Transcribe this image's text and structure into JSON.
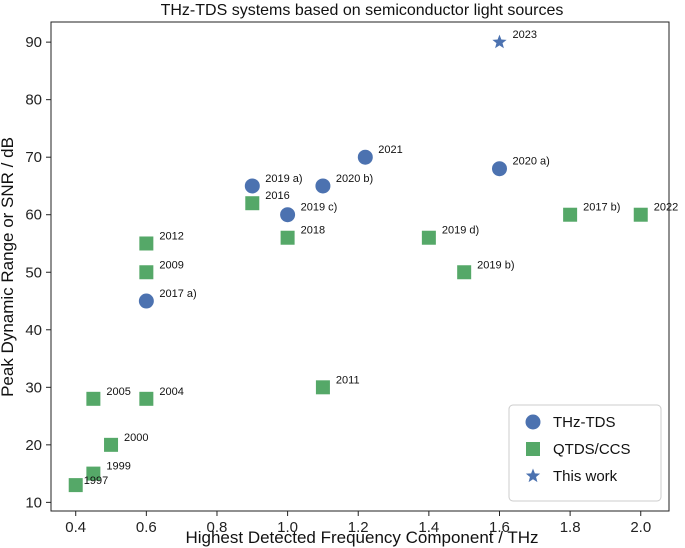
{
  "chart_data": {
    "type": "scatter",
    "title": "THz-TDS systems based on semiconductor light sources",
    "xlabel": "Highest Detected Frequency Component / THz",
    "ylabel": "Peak Dynamic Range or SNR / dB",
    "xlim": [
      0.33,
      2.08
    ],
    "ylim": [
      8.5,
      93.5
    ],
    "xticks": [
      0.4,
      0.6,
      0.8,
      1.0,
      1.2,
      1.4,
      1.6,
      1.8,
      2.0
    ],
    "xtick_labels": [
      "0.4",
      "0.6",
      "0.8",
      "1.0",
      "1.2",
      "1.4",
      "1.6",
      "1.8",
      "2.0"
    ],
    "yticks": [
      10,
      20,
      30,
      40,
      50,
      60,
      70,
      80,
      90
    ],
    "ytick_labels": [
      "10",
      "20",
      "30",
      "40",
      "50",
      "60",
      "70",
      "80",
      "90"
    ],
    "legend_position": "bottom-right",
    "series": [
      {
        "name": "THz-TDS",
        "marker": "circle",
        "color": "#4c72b0",
        "points": [
          {
            "x": 0.6,
            "y": 45,
            "label": "2017 a)"
          },
          {
            "x": 0.9,
            "y": 65,
            "label": "2019 a)"
          },
          {
            "x": 1.0,
            "y": 60,
            "label": "2019 c)"
          },
          {
            "x": 1.1,
            "y": 65,
            "label": "2020 b)"
          },
          {
            "x": 1.22,
            "y": 70,
            "label": "2021"
          },
          {
            "x": 1.6,
            "y": 68,
            "label": "2020 a)"
          }
        ]
      },
      {
        "name": "QTDS/CCS",
        "marker": "square",
        "color": "#55a868",
        "points": [
          {
            "x": 0.4,
            "y": 13,
            "label": "1997"
          },
          {
            "x": 0.45,
            "y": 15,
            "label": "1999"
          },
          {
            "x": 0.5,
            "y": 20,
            "label": "2000"
          },
          {
            "x": 0.45,
            "y": 28,
            "label": "2005"
          },
          {
            "x": 0.6,
            "y": 28,
            "label": "2004"
          },
          {
            "x": 0.6,
            "y": 50,
            "label": "2009"
          },
          {
            "x": 0.6,
            "y": 55,
            "label": "2012"
          },
          {
            "x": 0.9,
            "y": 62,
            "label": "2016"
          },
          {
            "x": 1.0,
            "y": 56,
            "label": "2018"
          },
          {
            "x": 1.1,
            "y": 30,
            "label": "2011"
          },
          {
            "x": 1.4,
            "y": 56,
            "label": "2019 d)"
          },
          {
            "x": 1.5,
            "y": 50,
            "label": "2019 b)"
          },
          {
            "x": 1.8,
            "y": 60,
            "label": "2017 b)"
          },
          {
            "x": 2.0,
            "y": 60,
            "label": "2022"
          }
        ]
      },
      {
        "name": "This work",
        "marker": "star",
        "color": "#4c72b0",
        "points": [
          {
            "x": 1.6,
            "y": 90,
            "label": "2023"
          }
        ]
      }
    ]
  }
}
